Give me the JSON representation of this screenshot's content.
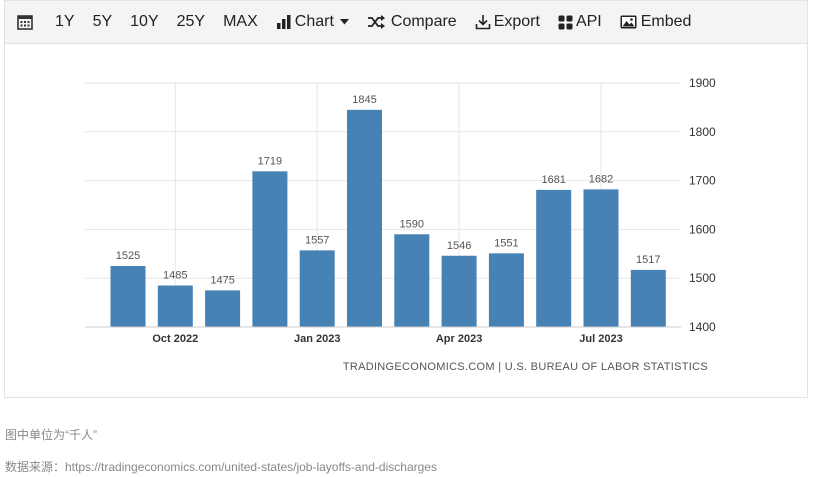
{
  "toolbar": {
    "ranges": [
      "1Y",
      "5Y",
      "10Y",
      "25Y",
      "MAX"
    ],
    "chart_label": "Chart",
    "compare_label": "Compare",
    "export_label": "Export",
    "api_label": "API",
    "embed_label": "Embed"
  },
  "watermark": "TRADINGECONOMICS.COM | U.S. BUREAU OF LABOR STATISTICS",
  "footer": {
    "unit_note": "图中单位为“千人”",
    "source_note": "数据来源：https://tradingeconomics.com/united-states/job-layoffs-and-discharges"
  },
  "colors": {
    "bar": "#4682b4",
    "grid": "#e6e6e6",
    "label": "#555555"
  },
  "chart_data": {
    "type": "bar",
    "categories": [
      "Sep 2022",
      "Oct 2022",
      "Nov 2022",
      "Dec 2022",
      "Jan 2023",
      "Feb 2023",
      "Mar 2023",
      "Apr 2023",
      "May 2023",
      "Jun 2023",
      "Jul 2023",
      "Aug 2023"
    ],
    "values": [
      1525,
      1485,
      1475,
      1719,
      1557,
      1845,
      1590,
      1546,
      1551,
      1681,
      1682,
      1517
    ],
    "x_tick_labels": [
      {
        "label": "Oct 2022",
        "category": "Oct 2022"
      },
      {
        "label": "Jan 2023",
        "category": "Jan 2023"
      },
      {
        "label": "Apr 2023",
        "category": "Apr 2023"
      },
      {
        "label": "Jul 2023",
        "category": "Jul 2023"
      }
    ],
    "y_ticks": [
      1400,
      1500,
      1600,
      1700,
      1800,
      1900
    ],
    "ylim": [
      1400,
      1900
    ],
    "y_axis_side": "right",
    "grid": true,
    "data_labels": true,
    "title": "",
    "xlabel": "",
    "ylabel": ""
  }
}
